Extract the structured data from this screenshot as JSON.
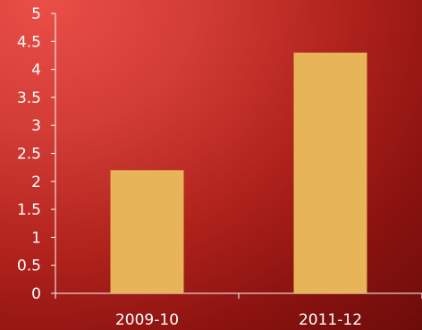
{
  "chart_data": {
    "type": "bar",
    "title": "",
    "xlabel": "",
    "ylabel": "",
    "categories": [
      "2009-10",
      "2011-12"
    ],
    "values": [
      2.2,
      4.3
    ],
    "ylim": [
      0,
      5
    ],
    "yticks": [
      "0",
      "0.5",
      "1",
      "1.5",
      "2",
      "2.5",
      "3",
      "3.5",
      "4",
      "4.5",
      "5"
    ],
    "grid": false,
    "legend": "none",
    "colors": {
      "bar": "#e8b45a",
      "axis": "#ffffff",
      "text": "#ffffff",
      "background_light": "#ea4e47",
      "background_dark": "#6a0c0a"
    }
  }
}
